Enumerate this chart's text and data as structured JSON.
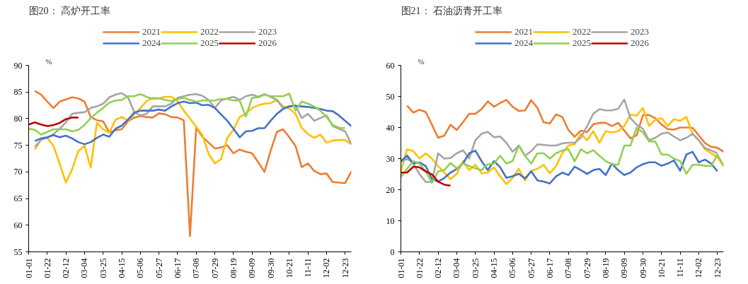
{
  "chart_data": [
    {
      "type": "line",
      "title": "图20：  高炉开工率",
      "ylabel": "%",
      "ylim": [
        55,
        90
      ],
      "yticks": [
        55,
        60,
        65,
        70,
        75,
        80,
        85,
        90
      ],
      "grid": false,
      "legend": "top",
      "categories": [
        "01-01",
        null,
        null,
        "01-22",
        null,
        null,
        "02-12",
        null,
        null,
        "03-04",
        null,
        null,
        "03-25",
        null,
        null,
        "04-15",
        null,
        null,
        "05-06",
        null,
        null,
        "05-27",
        null,
        null,
        "06-17",
        null,
        null,
        "07-08",
        null,
        null,
        "07-29",
        null,
        null,
        "08-19",
        null,
        null,
        "09-09",
        null,
        null,
        "09-30",
        null,
        null,
        "10-21",
        null,
        null,
        "11-11",
        null,
        null,
        "12-02",
        null,
        null,
        "12-23",
        null
      ],
      "series": [
        {
          "name": "2021",
          "color": "#ed7d31",
          "values": [
            null,
            85.2,
            84.5,
            83.2,
            82,
            83.2,
            83.6,
            84,
            83.8,
            83.2,
            80.3,
            79.7,
            79.5,
            77.4,
            77.8,
            78,
            79.5,
            80.2,
            80.5,
            80.3,
            80.2,
            81,
            80.8,
            80.3,
            80.2,
            79.7,
            58,
            78.3,
            76.6,
            75.5,
            74.4,
            74.6,
            75,
            73.5,
            74.2,
            73.8,
            73.5,
            71.8,
            70,
            74,
            77.5,
            78,
            76.5,
            74.9,
            70.9,
            71.6,
            70.2,
            69.6,
            69.7,
            68.1,
            68,
            67.9,
            70.1
          ]
        },
        {
          "name": "2022",
          "color": "#ffc000",
          "values": [
            null,
            74.2,
            76.1,
            76.4,
            74.9,
            71.5,
            68,
            70.5,
            73.9,
            74.9,
            70.8,
            79.2,
            78,
            77.4,
            79.8,
            80.3,
            79.6,
            80.8,
            82,
            83.3,
            83.9,
            83.8,
            84.1,
            84.1,
            83.3,
            81.5,
            80,
            78.5,
            76.9,
            73.4,
            71.6,
            72.4,
            76.4,
            77.9,
            80.3,
            80.9,
            82,
            82.5,
            82.8,
            82.9,
            83.5,
            82.3,
            81.9,
            80.9,
            78.3,
            77.1,
            76.4,
            77,
            75.5,
            75.9,
            76,
            76,
            75.2
          ]
        },
        {
          "name": "2023",
          "color": "#a5a5a5",
          "values": [
            null,
            74.7,
            76,
            76.4,
            77.1,
            78.1,
            79.3,
            80.9,
            81.1,
            81.2,
            82,
            82.3,
            82.8,
            84,
            84.5,
            84.8,
            84,
            81.3,
            80.6,
            80.9,
            82.3,
            82.3,
            82.3,
            82.8,
            83.9,
            84.2,
            84.5,
            84.6,
            84.3,
            83.5,
            82,
            83.4,
            83.8,
            84.1,
            83.5,
            84.2,
            84.5,
            84.1,
            84.6,
            84.1,
            83.5,
            82,
            82.3,
            82.5,
            80.1,
            80.9,
            79.6,
            80.1,
            80.6,
            78.6,
            78.1,
            77.6,
            75.2
          ]
        },
        {
          "name": "2024",
          "color": "#4472c4",
          "values": [
            null,
            75.8,
            76.3,
            76.5,
            76.9,
            76.5,
            76.8,
            76.3,
            75.6,
            75.2,
            75.6,
            76.4,
            77,
            76.6,
            78.1,
            78.7,
            79.8,
            81.1,
            81.5,
            81.5,
            81.5,
            81.7,
            81.5,
            82.3,
            82.9,
            83.2,
            82.9,
            83,
            82.5,
            82.6,
            82,
            80.8,
            79.6,
            78.1,
            76.5,
            77.6,
            77.7,
            78.2,
            78.2,
            79.6,
            80.9,
            81.8,
            82.3,
            82.4,
            82.3,
            82.2,
            82,
            81.8,
            81.5,
            81.4,
            80.6,
            79.6,
            78.6
          ]
        },
        {
          "name": "2025",
          "color": "#92d050",
          "values": [
            78.1,
            77.9,
            77,
            77.5,
            78,
            78,
            78,
            77.6,
            77.9,
            78.8,
            80.1,
            81.1,
            82,
            83,
            83.4,
            83.5,
            84.2,
            84.2,
            84.6,
            84.1,
            83.7,
            83.8,
            83.5,
            83.3,
            83.7,
            83.9,
            83.5,
            83.2,
            83.4,
            83.4,
            83.4,
            83.7,
            83.7,
            83.4,
            83.4,
            80.4,
            83.9,
            84,
            84.5,
            84.2,
            84.2,
            84.2,
            84.7,
            81.5,
            83.2,
            82.8,
            82.3,
            81.5,
            80.3,
            78.8,
            78.3,
            78.2,
            null
          ]
        },
        {
          "name": "2026",
          "color": "#c00000",
          "values": [
            78.9,
            79.3,
            78.9,
            78.6,
            78.8,
            79.2,
            79.9,
            80.2,
            80.2,
            null,
            null,
            null,
            null,
            null,
            null,
            null,
            null,
            null,
            null,
            null,
            null,
            null,
            null,
            null,
            null,
            null,
            null,
            null,
            null,
            null,
            null,
            null,
            null,
            null,
            null,
            null,
            null,
            null,
            null,
            null,
            null,
            null,
            null,
            null,
            null,
            null,
            null,
            null,
            null,
            null,
            null,
            null,
            null
          ]
        }
      ]
    },
    {
      "type": "line",
      "title": "图21：  石油沥青开工率",
      "ylabel": "%",
      "ylim": [
        0,
        60
      ],
      "yticks": [
        0,
        10,
        20,
        30,
        40,
        50,
        60
      ],
      "grid": false,
      "legend": "top",
      "categories": [
        "01-01",
        null,
        null,
        "01-22",
        null,
        null,
        "02-12",
        null,
        null,
        "03-04",
        null,
        null,
        "03-25",
        null,
        null,
        "04-15",
        null,
        null,
        "05-06",
        null,
        null,
        "05-27",
        null,
        null,
        "06-17",
        null,
        null,
        "07-08",
        null,
        null,
        "07-29",
        null,
        null,
        "08-19",
        null,
        null,
        "09-09",
        null,
        null,
        "09-30",
        null,
        null,
        "10-21",
        null,
        null,
        "11-11",
        null,
        null,
        "12-02",
        null,
        null,
        "12-23",
        null
      ],
      "series": [
        {
          "name": "2021",
          "color": "#ed7d31",
          "values": [
            null,
            47,
            44.8,
            45.7,
            45,
            40.9,
            36.7,
            37.4,
            40.9,
            39.2,
            41.7,
            44.4,
            44.4,
            45.9,
            48.4,
            46.7,
            47.9,
            48.9,
            46.7,
            45.3,
            45.5,
            48.8,
            46.3,
            41.7,
            41.3,
            44.2,
            43.4,
            39.2,
            37,
            39,
            38.5,
            41,
            41.5,
            41.5,
            40.5,
            41.5,
            39,
            36.5,
            37.5,
            44,
            44,
            43,
            41,
            39.5,
            39.3,
            40,
            40,
            39.9,
            37.5,
            35,
            33.8,
            33.5,
            32.2
          ]
        },
        {
          "name": "2022",
          "color": "#ffc000",
          "values": [
            26,
            33,
            32.4,
            30,
            31.7,
            30,
            27.6,
            25.5,
            23.4,
            25.1,
            29.2,
            26.3,
            28,
            25.3,
            25.5,
            27.2,
            24.3,
            21.8,
            23.8,
            26.7,
            23,
            26.1,
            26.7,
            28,
            25.3,
            27.6,
            31.7,
            34.2,
            34.6,
            38,
            35.9,
            38.8,
            35.1,
            38.8,
            38.4,
            38.8,
            40.5,
            44.2,
            43.8,
            46.3,
            40.5,
            42.5,
            43,
            40.5,
            42.7,
            42.1,
            43.4,
            38,
            35.9,
            33,
            31.7,
            30.5,
            27.6
          ]
        },
        {
          "name": "2023",
          "color": "#a5a5a5",
          "values": [
            29,
            30,
            28.5,
            25,
            22.5,
            22.5,
            31.7,
            30,
            30.2,
            31.7,
            32.7,
            30,
            35.9,
            38,
            38.6,
            36.9,
            37.1,
            35.1,
            32.2,
            34.2,
            30.9,
            32.4,
            34.6,
            34.4,
            34.2,
            34.2,
            34.9,
            35.1,
            35.1,
            36.7,
            40.5,
            44.4,
            45.9,
            45.5,
            45.5,
            46,
            49,
            43,
            40.9,
            39.6,
            35.9,
            36.7,
            38,
            38.4,
            37.1,
            35.9,
            36.7,
            38,
            35.9,
            33.4,
            32.6,
            31.7,
            null
          ]
        },
        {
          "name": "2024",
          "color": "#4472c4",
          "values": [
            29.2,
            31,
            28.4,
            28.8,
            27.6,
            23.4,
            22.6,
            23.8,
            25.5,
            26.7,
            28.4,
            31.7,
            32.6,
            29.2,
            26.3,
            29.2,
            27.2,
            23.8,
            24.3,
            25.1,
            23.6,
            25.9,
            23,
            22.6,
            22,
            24.3,
            25.5,
            24.7,
            27.4,
            26.3,
            25.1,
            26.3,
            26.7,
            24.7,
            28.4,
            26.3,
            24.7,
            25.5,
            27.2,
            28.2,
            28.8,
            28.8,
            27.7,
            28.4,
            29.4,
            26.1,
            31.3,
            32.2,
            28.8,
            29.7,
            28.4,
            25.9,
            null
          ]
        },
        {
          "name": "2025",
          "color": "#92d050",
          "values": [
            24.1,
            26.7,
            29.2,
            28.4,
            25.9,
            22.2,
            25.9,
            26.3,
            28.6,
            26.9,
            28.4,
            27.6,
            26.9,
            26.3,
            28.2,
            28.4,
            30.9,
            28.4,
            29.2,
            34.2,
            30.9,
            28.4,
            31.7,
            31.7,
            30,
            31.7,
            32.6,
            33,
            29.1,
            33,
            31.7,
            32.7,
            30.9,
            29.2,
            28.2,
            28,
            34.2,
            34.2,
            40,
            38.4,
            35.5,
            35.5,
            31.3,
            31.3,
            30,
            29.2,
            25.1,
            28,
            28,
            27.7,
            27.6,
            31.3,
            27.6
          ]
        },
        {
          "name": "2026",
          "color": "#c00000",
          "values": [
            25.5,
            25.5,
            27.4,
            27.2,
            25.9,
            24.9,
            22.6,
            21.6,
            21.3,
            null,
            null,
            null,
            null,
            null,
            null,
            null,
            null,
            null,
            null,
            null,
            null,
            null,
            null,
            null,
            null,
            null,
            null,
            null,
            null,
            null,
            null,
            null,
            null,
            null,
            null,
            null,
            null,
            null,
            null,
            null,
            null,
            null,
            null,
            null,
            null,
            null,
            null,
            null,
            null,
            null,
            null,
            null,
            null
          ]
        }
      ]
    }
  ]
}
